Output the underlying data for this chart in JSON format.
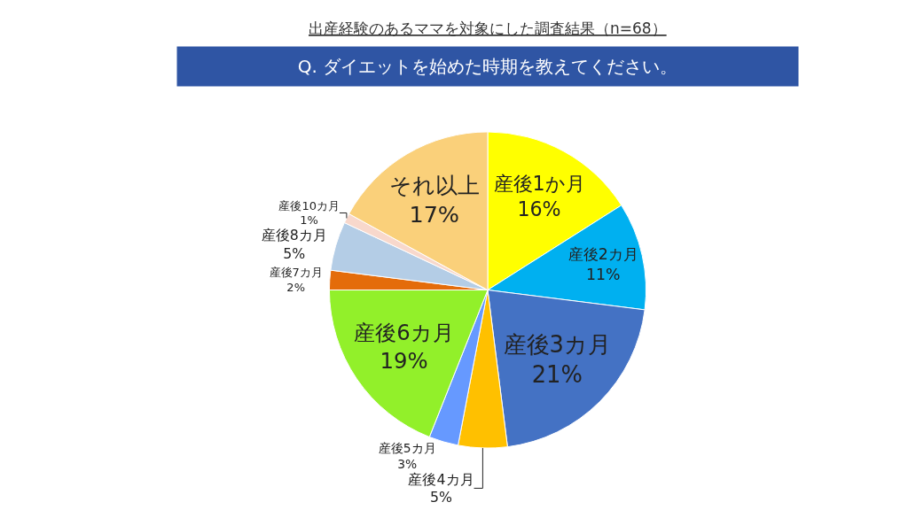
{
  "chart_data": {
    "type": "pie",
    "title": "出産経験のあるママを対象にした調査結果（n=68）",
    "subtitle": "Q. ダイエットを始めた時期を教えてください。",
    "categories": [
      "産後1か月",
      "産後2カ月",
      "産後3カ月",
      "産後4カ月",
      "産後5カ月",
      "産後6カ月",
      "産後7カ月",
      "産後8カ月",
      "産後10カ月",
      "それ以上"
    ],
    "values": [
      16,
      11,
      21,
      5,
      3,
      19,
      2,
      5,
      1,
      17
    ],
    "value_labels": [
      "16%",
      "11%",
      "21%",
      "5%",
      "3%",
      "19%",
      "2%",
      "5%",
      "1%",
      "17%"
    ],
    "colors": [
      "#ffff00",
      "#00b0f0",
      "#4472c4",
      "#ffc000",
      "#6699ff",
      "#92f02a",
      "#e46c0a",
      "#b4cde6",
      "#f8d8cc",
      "#fad07a"
    ],
    "legend": false
  }
}
